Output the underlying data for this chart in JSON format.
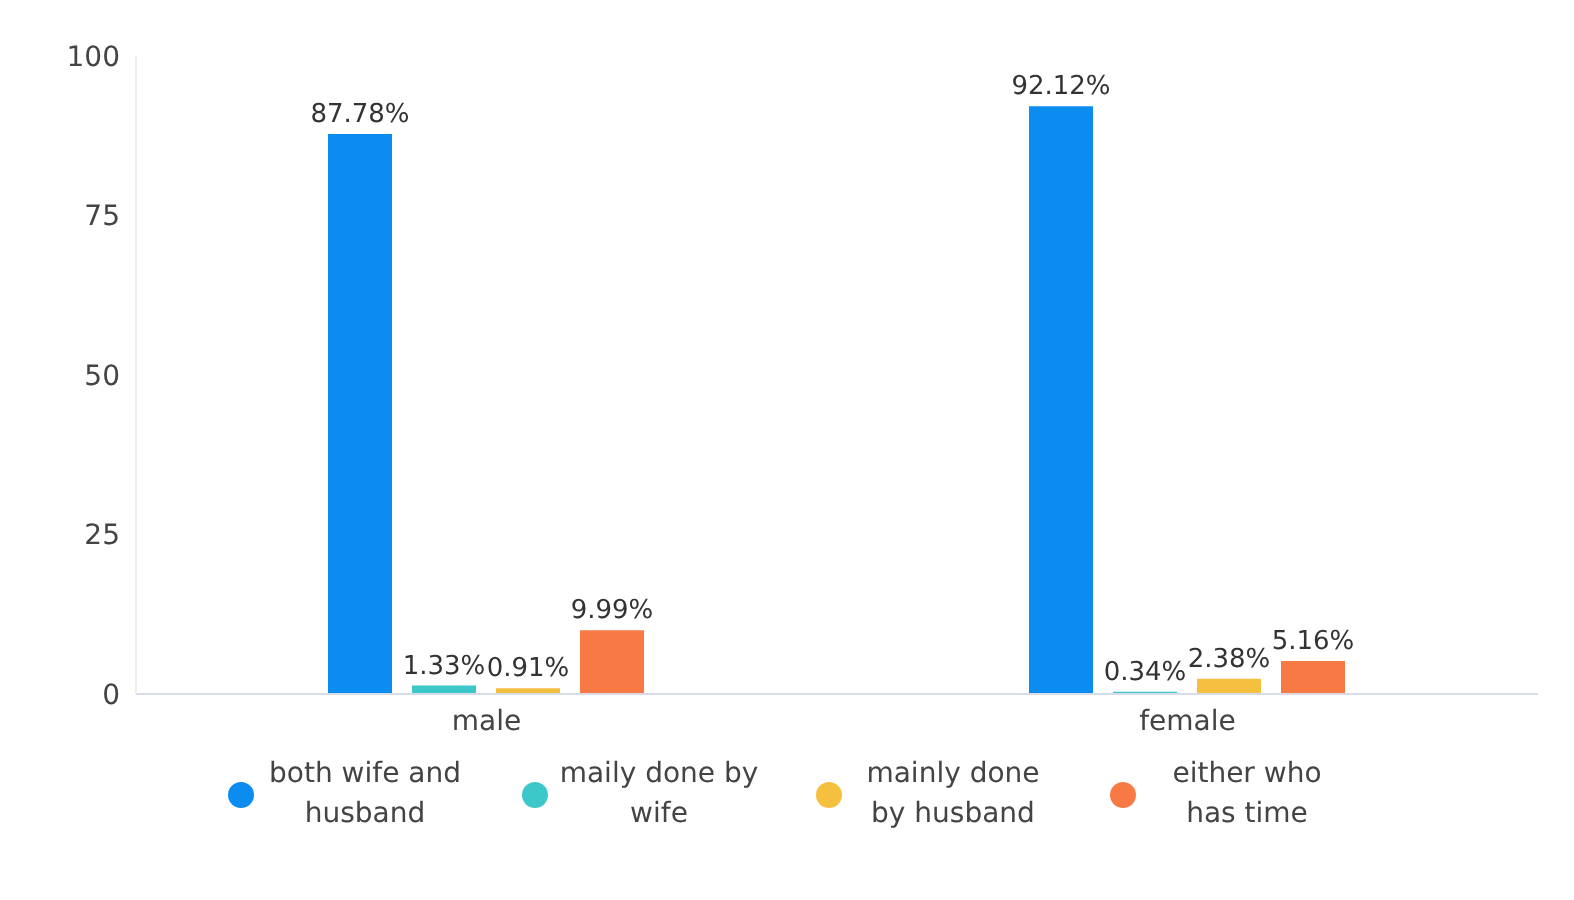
{
  "chart_data": {
    "type": "bar",
    "categories": [
      "male",
      "female"
    ],
    "series": [
      {
        "name": "both wife and husband",
        "color": "#0a8cf0",
        "values": [
          87.78,
          92.12
        ],
        "value_labels": [
          "87.78%",
          "92.12%"
        ]
      },
      {
        "name": "maily done by wife",
        "color": "#3cc8c8",
        "values": [
          1.33,
          0.34
        ],
        "value_labels": [
          "1.33%",
          "0.34%"
        ]
      },
      {
        "name": "mainly done by husband",
        "color": "#f5c040",
        "values": [
          0.91,
          2.38
        ],
        "value_labels": [
          "0.91%",
          "2.38%"
        ]
      },
      {
        "name": "either who has time",
        "color": "#f77a45",
        "values": [
          9.99,
          5.16
        ],
        "value_labels": [
          "9.99%",
          "5.16%"
        ]
      }
    ],
    "ylim": [
      0,
      100
    ],
    "yticks": [
      0,
      25,
      50,
      75,
      100
    ],
    "grid": false,
    "legend": "bottom"
  }
}
